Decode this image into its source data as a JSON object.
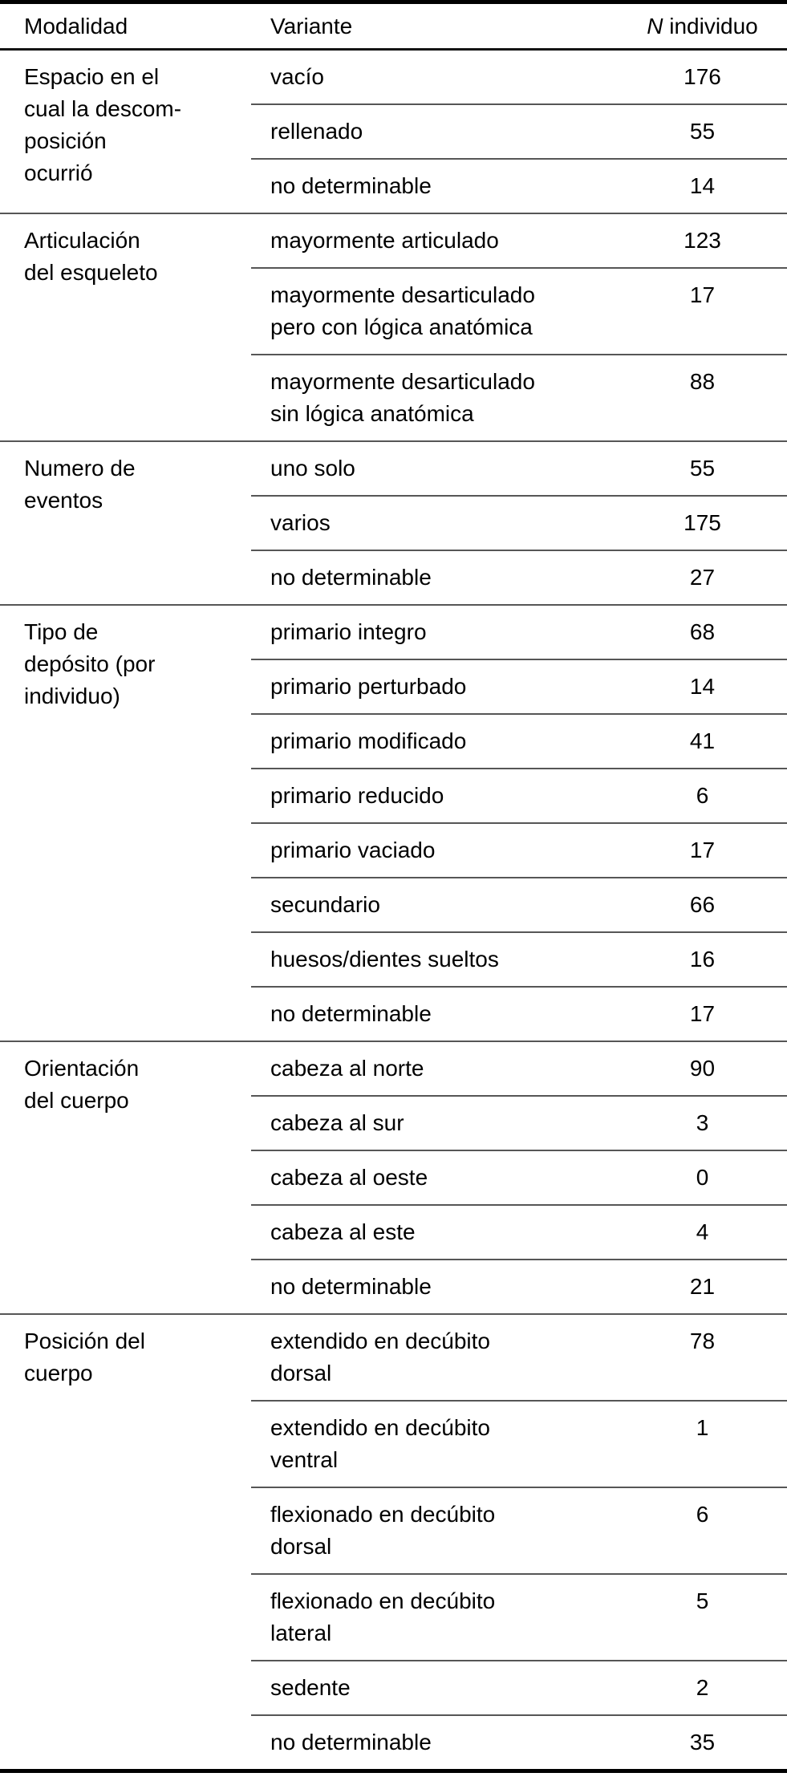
{
  "table": {
    "header": {
      "col_modalidad": "Modalidad",
      "col_variante": "Variante",
      "col_n_prefix": "N",
      "col_n_suffix": " individuo"
    },
    "groups": [
      {
        "modalidad": "Espacio en el\ncual la descom-\nposición\nocurrió",
        "variants": [
          {
            "name": "vacío",
            "n": "176"
          },
          {
            "name": "rellenado",
            "n": "55"
          },
          {
            "name": "no determinable",
            "n": "14"
          }
        ]
      },
      {
        "modalidad": "Articulación\ndel esqueleto",
        "variants": [
          {
            "name": "mayormente articulado",
            "n": "123"
          },
          {
            "name": "mayormente desarticulado\npero con lógica anatómica",
            "n": "17"
          },
          {
            "name": "mayormente desarticulado\nsin lógica anatómica",
            "n": "88"
          }
        ]
      },
      {
        "modalidad": "Numero de\neventos",
        "variants": [
          {
            "name": "uno solo",
            "n": "55"
          },
          {
            "name": "varios",
            "n": "175"
          },
          {
            "name": "no determinable",
            "n": "27"
          }
        ]
      },
      {
        "modalidad": "Tipo de\ndepósito (por\nindividuo)",
        "variants": [
          {
            "name": "primario integro",
            "n": "68"
          },
          {
            "name": "primario perturbado",
            "n": "14"
          },
          {
            "name": "primario modificado",
            "n": "41"
          },
          {
            "name": "primario reducido",
            "n": "6"
          },
          {
            "name": "primario vaciado",
            "n": "17"
          },
          {
            "name": "secundario",
            "n": "66"
          },
          {
            "name": "huesos/dientes sueltos",
            "n": "16"
          },
          {
            "name": "no determinable",
            "n": "17"
          }
        ]
      },
      {
        "modalidad": "Orientación\ndel cuerpo",
        "variants": [
          {
            "name": "cabeza al norte",
            "n": "90"
          },
          {
            "name": "cabeza al sur",
            "n": "3"
          },
          {
            "name": "cabeza al oeste",
            "n": "0"
          },
          {
            "name": "cabeza al este",
            "n": "4"
          },
          {
            "name": "no determinable",
            "n": "21"
          }
        ]
      },
      {
        "modalidad": "Posición del\ncuerpo",
        "variants": [
          {
            "name": "extendido en decúbito\ndorsal",
            "n": "78"
          },
          {
            "name": "extendido en decúbito\nventral",
            "n": "1"
          },
          {
            "name": "flexionado en decúbito\ndorsal",
            "n": "6"
          },
          {
            "name": "flexionado en decúbito\nlateral",
            "n": "5"
          },
          {
            "name": "sedente",
            "n": "2"
          },
          {
            "name": "no determinable",
            "n": "35"
          }
        ]
      }
    ],
    "colors": {
      "rule_black": "#000000",
      "rule_gray": "#565656",
      "text": "#000000",
      "background": "#ffffff"
    }
  }
}
